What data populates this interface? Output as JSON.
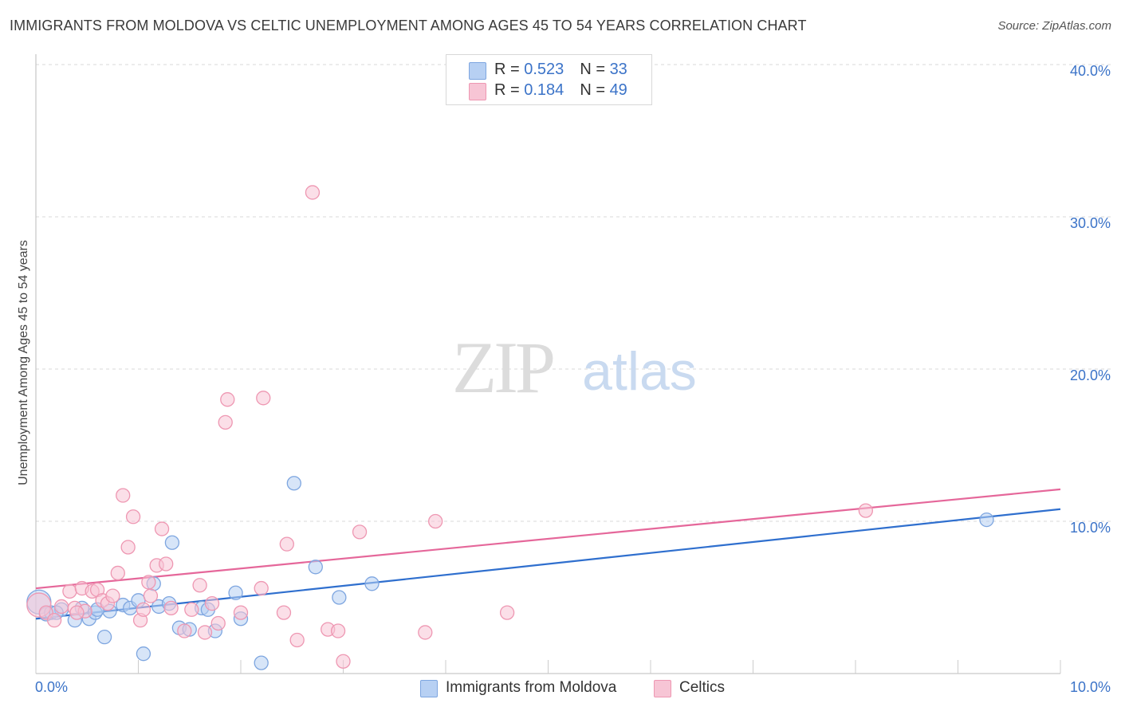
{
  "title": "IMMIGRANTS FROM MOLDOVA VS CELTIC UNEMPLOYMENT AMONG AGES 45 TO 54 YEARS CORRELATION CHART",
  "source": "Source: ZipAtlas.com",
  "watermark": {
    "zip": "ZIP",
    "atlas": "atlas"
  },
  "colors": {
    "blue_fill": "#b7d0f3",
    "blue_stroke": "#7ea6e0",
    "blue_line": "#2f6fce",
    "pink_fill": "#f7c5d5",
    "pink_stroke": "#ee97b2",
    "pink_line": "#e5679a",
    "tick_text": "#3b73c8",
    "grid": "#d9d9d9"
  },
  "legend": {
    "rows": [
      {
        "r_label": "R = ",
        "r_value": "0.523",
        "n_label": "N = ",
        "n_value": "33"
      },
      {
        "r_label": "R = ",
        "r_value": "0.184",
        "n_label": "N = ",
        "n_value": "49"
      }
    ]
  },
  "bottom_legend": [
    {
      "label": "Immigrants from Moldova"
    },
    {
      "label": "Celtics"
    }
  ],
  "chart_data": {
    "type": "scatter",
    "title": "IMMIGRANTS FROM MOLDOVA VS CELTIC UNEMPLOYMENT AMONG AGES 45 TO 54 YEARS CORRELATION CHART",
    "xlabel": "",
    "ylabel": "Unemployment Among Ages 45 to 54 years",
    "xlim": [
      0,
      10
    ],
    "ylim": [
      0,
      41
    ],
    "x_tick_labels": [
      {
        "value": 0,
        "label": "0.0%"
      },
      {
        "value": 10,
        "label": "10.0%"
      }
    ],
    "y_tick_labels": [
      {
        "value": 10,
        "label": "10.0%"
      },
      {
        "value": 20,
        "label": "20.0%"
      },
      {
        "value": 30,
        "label": "30.0%"
      },
      {
        "value": 40,
        "label": "40.0%"
      }
    ],
    "y_gridlines": [
      10,
      20,
      30,
      40
    ],
    "series": [
      {
        "name": "Immigrants from Moldova",
        "color": "blue",
        "r": 0.523,
        "n": 33,
        "trend": {
          "x0": 0,
          "y0": 3.6,
          "x1": 10,
          "y1": 10.8
        },
        "points": [
          [
            0.03,
            4.7
          ],
          [
            0.1,
            3.9
          ],
          [
            0.15,
            4.0
          ],
          [
            0.25,
            4.2
          ],
          [
            0.38,
            3.5
          ],
          [
            0.45,
            4.3
          ],
          [
            0.52,
            3.6
          ],
          [
            0.58,
            4.0
          ],
          [
            0.67,
            2.4
          ],
          [
            0.72,
            4.1
          ],
          [
            0.85,
            4.5
          ],
          [
            0.92,
            4.3
          ],
          [
            1.0,
            4.8
          ],
          [
            1.05,
            1.3
          ],
          [
            1.15,
            5.9
          ],
          [
            1.2,
            4.4
          ],
          [
            1.3,
            4.6
          ],
          [
            1.33,
            8.6
          ],
          [
            1.4,
            3.0
          ],
          [
            1.5,
            2.9
          ],
          [
            1.62,
            4.3
          ],
          [
            1.68,
            4.2
          ],
          [
            1.75,
            2.8
          ],
          [
            1.95,
            5.3
          ],
          [
            2.0,
            3.6
          ],
          [
            2.2,
            0.7
          ],
          [
            2.52,
            12.5
          ],
          [
            2.73,
            7.0
          ],
          [
            2.96,
            5.0
          ],
          [
            3.28,
            5.9
          ],
          [
            0.2,
            4.0
          ],
          [
            0.6,
            4.2
          ],
          [
            9.28,
            10.1
          ]
        ]
      },
      {
        "name": "Celtics",
        "color": "pink",
        "r": 0.184,
        "n": 49,
        "trend": {
          "x0": 0,
          "y0": 5.6,
          "x1": 10,
          "y1": 12.1
        },
        "points": [
          [
            0.03,
            4.5
          ],
          [
            0.1,
            4.0
          ],
          [
            0.18,
            3.5
          ],
          [
            0.25,
            4.4
          ],
          [
            0.33,
            5.4
          ],
          [
            0.38,
            4.3
          ],
          [
            0.45,
            5.6
          ],
          [
            0.48,
            4.1
          ],
          [
            0.55,
            5.4
          ],
          [
            0.6,
            5.5
          ],
          [
            0.65,
            4.8
          ],
          [
            0.7,
            4.6
          ],
          [
            0.75,
            5.1
          ],
          [
            0.8,
            6.6
          ],
          [
            0.85,
            11.7
          ],
          [
            0.9,
            8.3
          ],
          [
            0.95,
            10.3
          ],
          [
            1.02,
            3.5
          ],
          [
            1.1,
            6.0
          ],
          [
            1.12,
            5.1
          ],
          [
            1.18,
            7.1
          ],
          [
            1.23,
            9.5
          ],
          [
            1.27,
            7.2
          ],
          [
            1.32,
            4.3
          ],
          [
            1.45,
            2.8
          ],
          [
            1.52,
            4.2
          ],
          [
            1.6,
            5.8
          ],
          [
            1.65,
            2.7
          ],
          [
            1.72,
            4.6
          ],
          [
            1.78,
            3.3
          ],
          [
            1.85,
            16.5
          ],
          [
            1.87,
            18.0
          ],
          [
            2.0,
            4.0
          ],
          [
            2.2,
            5.6
          ],
          [
            2.22,
            18.1
          ],
          [
            2.42,
            4.0
          ],
          [
            2.45,
            8.5
          ],
          [
            2.55,
            2.2
          ],
          [
            2.7,
            31.6
          ],
          [
            2.85,
            2.9
          ],
          [
            2.95,
            2.8
          ],
          [
            3.0,
            0.8
          ],
          [
            3.16,
            9.3
          ],
          [
            3.8,
            2.7
          ],
          [
            3.9,
            10.0
          ],
          [
            4.6,
            4.0
          ],
          [
            8.1,
            10.7
          ],
          [
            0.4,
            4.0
          ],
          [
            1.05,
            4.2
          ]
        ]
      }
    ],
    "legend_position": "top-center"
  }
}
